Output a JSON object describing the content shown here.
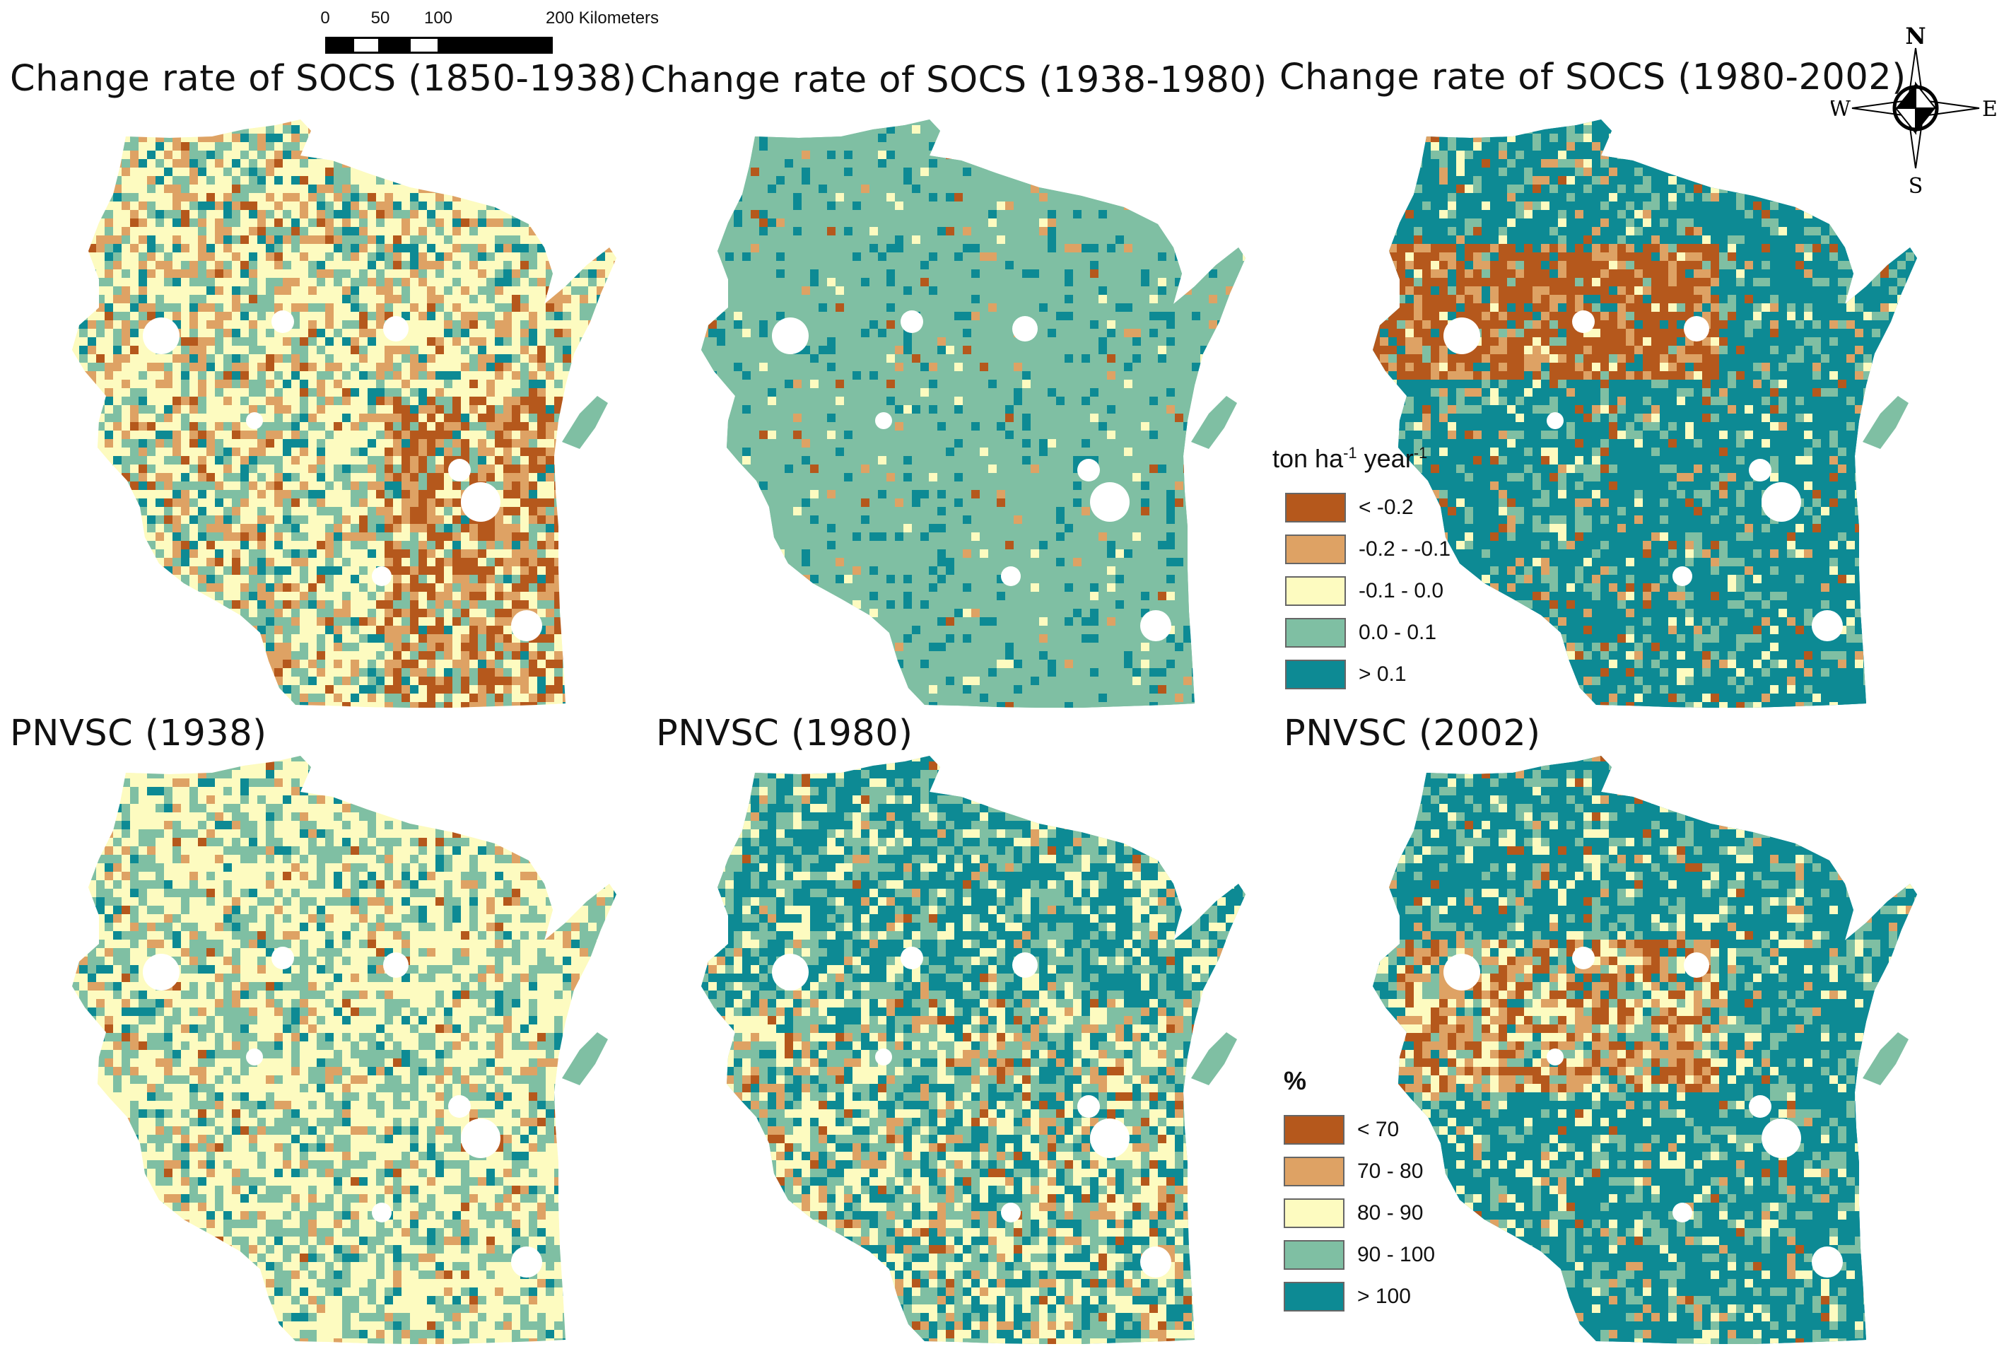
{
  "scalebar": {
    "ticks": [
      "0",
      "50",
      "100",
      "200 Kilometers"
    ]
  },
  "compass": {
    "n": "N",
    "s": "S",
    "e": "E",
    "w": "W"
  },
  "panels": [
    {
      "title": "Change rate of SOCS (1850-1938)"
    },
    {
      "title": "Change rate of SOCS (1938-1980)"
    },
    {
      "title": "Change rate of SOCS (1980-2002)"
    },
    {
      "title": "PNVSC (1938)"
    },
    {
      "title": "PNVSC (1980)"
    },
    {
      "title": "PNVSC (2002)"
    }
  ],
  "legend_socs": {
    "title_base": "ton ha",
    "title_sup1": "-1",
    "title_mid": " year",
    "title_sup2": "-1",
    "classes": [
      {
        "label": "< -0.2",
        "color": "#b5581c"
      },
      {
        "label": "-0.2 - -0.1",
        "color": "#dea264"
      },
      {
        "label": "-0.1 - 0.0",
        "color": "#fdfbc0"
      },
      {
        "label": "0.0 - 0.1",
        "color": "#7fbfa3"
      },
      {
        "label": "> 0.1",
        "color": "#0d8a94"
      }
    ]
  },
  "legend_pnvsc": {
    "title": "%",
    "classes": [
      {
        "label": "< 70",
        "color": "#b5581c"
      },
      {
        "label": "70 - 80",
        "color": "#dea264"
      },
      {
        "label": "80 - 90",
        "color": "#fdfbc0"
      },
      {
        "label": "90 - 100",
        "color": "#7fbfa3"
      },
      {
        "label": "> 100",
        "color": "#0d8a94"
      }
    ]
  }
}
